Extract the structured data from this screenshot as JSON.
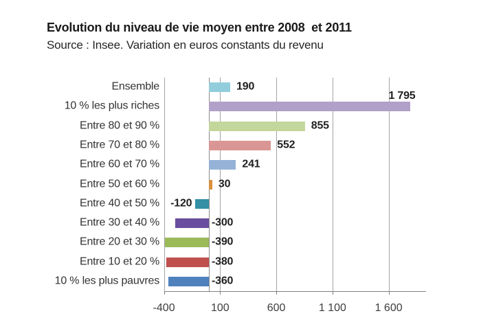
{
  "header": {
    "title": "Evolution du niveau de vie moyen entre 2008  et 2011",
    "subtitle": "Source : Insee. Variation en euros constants du revenu"
  },
  "chart_data": {
    "type": "bar",
    "orientation": "horizontal",
    "title": "Evolution du niveau de vie moyen entre 2008  et 2011",
    "subtitle": "Source : Insee. Variation en euros constants du revenu",
    "categories": [
      "Ensemble",
      "10 % les plus riches",
      "Entre 80 et 90 %",
      "Entre 70 et 80 %",
      "Entre 60 et 70 %",
      "Entre 50 et 60 %",
      "Entre 40 et 50 %",
      "Entre 30 et 40 %",
      "Entre 20 et 30 %",
      "Entre 10 et 20 %",
      "10 % les plus pauvres"
    ],
    "values": [
      190,
      1795,
      855,
      552,
      241,
      30,
      -120,
      -300,
      -390,
      -380,
      -360
    ],
    "value_labels": [
      "190",
      "1 795",
      "855",
      "552",
      "241",
      "30",
      "-120",
      "-300",
      "-390",
      "-380",
      "-360"
    ],
    "label_placement": [
      "right",
      "above-end",
      "right",
      "right",
      "right",
      "right",
      "left-of-bar",
      "right-of-axis",
      "right-of-axis",
      "right-of-axis",
      "right-of-axis"
    ],
    "bar_colors": [
      "#92CDDC",
      "#B1A0C7",
      "#C3D69B",
      "#D99694",
      "#95B3D7",
      "#D9913E",
      "#3590A6",
      "#6A4D9E",
      "#9BBB59",
      "#C0504D",
      "#4F81BD"
    ],
    "x_ticks": [
      -400,
      100,
      600,
      1100,
      1600
    ],
    "x_tick_labels": [
      "-400",
      "100",
      "600",
      "1 100",
      "1 600"
    ],
    "xlim": [
      -400,
      1930
    ],
    "grid": true,
    "legend": false,
    "axis_color": "#7f7f7f",
    "grid_color": "#a3a3a3",
    "value_label_color": "#1f1f1f",
    "category_label_color": "#333333"
  }
}
